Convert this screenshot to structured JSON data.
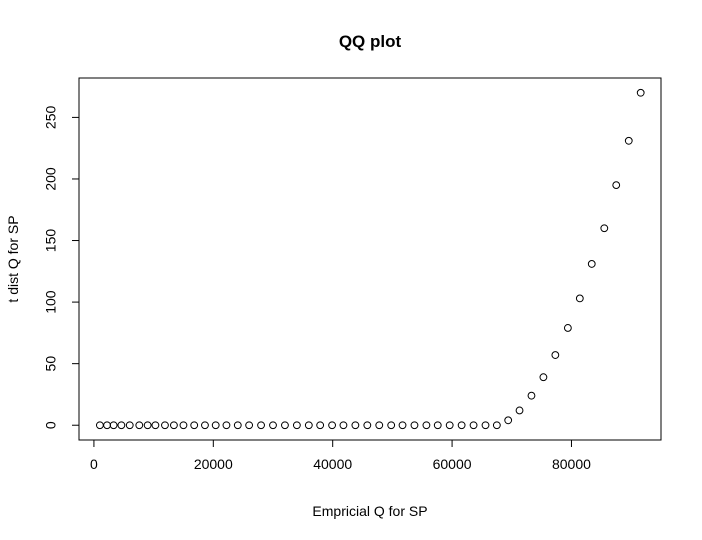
{
  "chart_data": {
    "type": "scatter",
    "title": "QQ plot",
    "xlabel": "Empricial Q for SP",
    "ylabel": "t dist Q for SP",
    "xlim": [
      -2500,
      95000
    ],
    "ylim": [
      -12,
      282
    ],
    "x_ticks": [
      0,
      20000,
      40000,
      60000,
      80000
    ],
    "x_tick_labels": [
      "0",
      "20000",
      "40000",
      "60000",
      "80000"
    ],
    "y_ticks": [
      0,
      50,
      100,
      150,
      200,
      250
    ],
    "y_tick_labels": [
      "0",
      "50",
      "100",
      "150",
      "200",
      "250"
    ],
    "grid": false,
    "marker": "open-circle",
    "series": [
      {
        "points": [
          [
            1000,
            0
          ],
          [
            2200,
            0
          ],
          [
            3300,
            0
          ],
          [
            4600,
            0
          ],
          [
            6000,
            0
          ],
          [
            7600,
            0
          ],
          [
            9000,
            0
          ],
          [
            10300,
            0
          ],
          [
            11900,
            0
          ],
          [
            13400,
            0
          ],
          [
            15000,
            0
          ],
          [
            16800,
            0
          ],
          [
            18600,
            0
          ],
          [
            20400,
            0
          ],
          [
            22200,
            0
          ],
          [
            24100,
            0
          ],
          [
            26000,
            0
          ],
          [
            28000,
            0
          ],
          [
            30000,
            0
          ],
          [
            32000,
            0
          ],
          [
            34000,
            0
          ],
          [
            36000,
            0
          ],
          [
            37900,
            0
          ],
          [
            39900,
            0
          ],
          [
            41800,
            0
          ],
          [
            43800,
            0
          ],
          [
            45800,
            0
          ],
          [
            47800,
            0
          ],
          [
            49800,
            0
          ],
          [
            51700,
            0
          ],
          [
            53700,
            0
          ],
          [
            55700,
            0
          ],
          [
            57600,
            0
          ],
          [
            59600,
            0
          ],
          [
            61600,
            0
          ],
          [
            63600,
            0
          ],
          [
            65600,
            0
          ],
          [
            67500,
            0
          ],
          [
            69400,
            4
          ],
          [
            71300,
            12
          ],
          [
            73300,
            24
          ],
          [
            75300,
            39
          ],
          [
            77300,
            57
          ],
          [
            79400,
            79
          ],
          [
            81400,
            103
          ],
          [
            83400,
            131
          ],
          [
            85500,
            160
          ],
          [
            87500,
            195
          ],
          [
            89600,
            231
          ],
          [
            91600,
            270
          ]
        ]
      }
    ]
  }
}
